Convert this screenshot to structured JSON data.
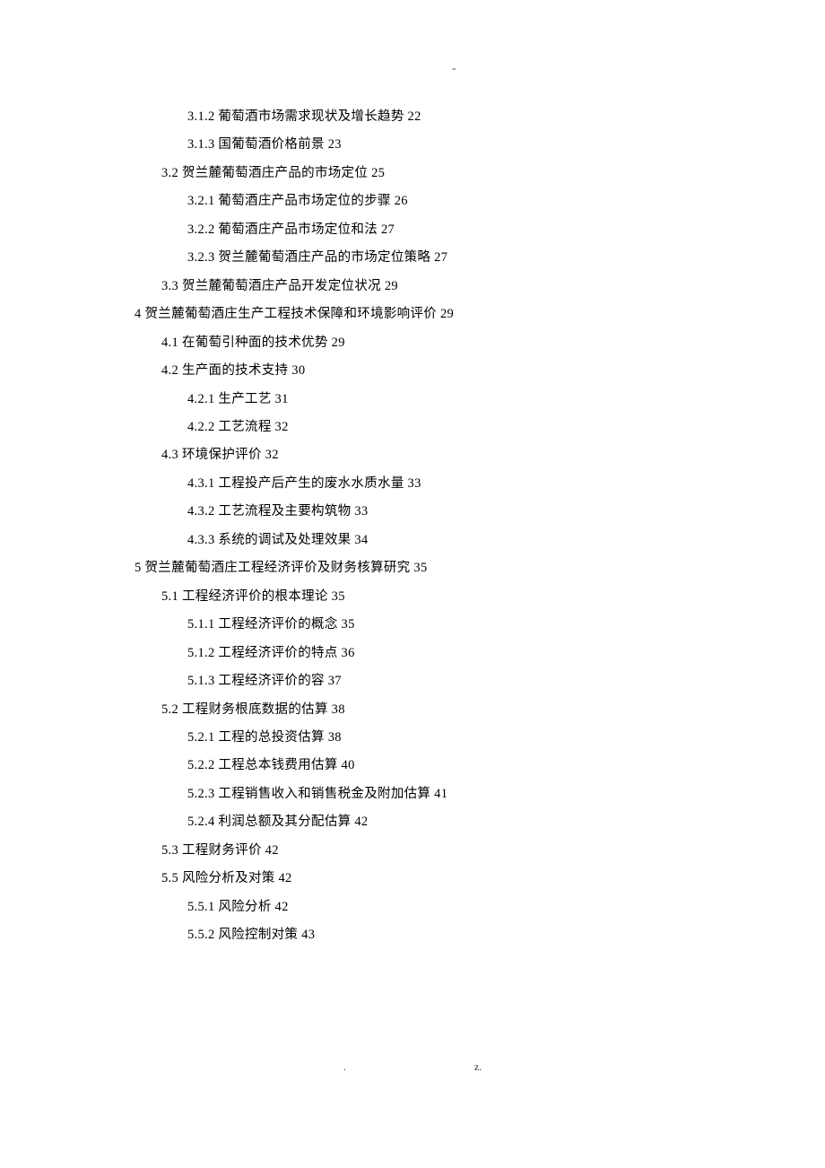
{
  "topMark": "-",
  "footerDot": ".",
  "footerZ": "z.",
  "tocEntries": [
    {
      "indent": 2,
      "text": "3.1.2 葡萄酒市场需求现状及增长趋势 22"
    },
    {
      "indent": 2,
      "text": "3.1.3 国葡萄酒价格前景 23"
    },
    {
      "indent": 1,
      "text": "3.2 贺兰麓葡萄酒庄产品的市场定位 25"
    },
    {
      "indent": 2,
      "text": "3.2.1 葡萄酒庄产品市场定位的步骤 26"
    },
    {
      "indent": 2,
      "text": "3.2.2 葡萄酒庄产品市场定位和法 27"
    },
    {
      "indent": 2,
      "text": "3.2.3 贺兰麓葡萄酒庄产品的市场定位策略 27"
    },
    {
      "indent": 1,
      "text": "3.3 贺兰麓葡萄酒庄产品开发定位状况 29"
    },
    {
      "indent": 0,
      "text": "4 贺兰麓葡萄酒庄生产工程技术保障和环境影响评价 29"
    },
    {
      "indent": 1,
      "text": "4.1 在葡萄引种面的技术优势 29"
    },
    {
      "indent": 1,
      "text": "4.2 生产面的技术支持 30"
    },
    {
      "indent": 2,
      "text": "4.2.1 生产工艺 31"
    },
    {
      "indent": 2,
      "text": "4.2.2 工艺流程 32"
    },
    {
      "indent": 1,
      "text": "4.3 环境保护评价 32"
    },
    {
      "indent": 2,
      "text": "4.3.1 工程投产后产生的废水水质水量 33"
    },
    {
      "indent": 2,
      "text": "4.3.2 工艺流程及主要构筑物 33"
    },
    {
      "indent": 2,
      "text": "4.3.3 系统的调试及处理效果 34"
    },
    {
      "indent": 0,
      "text": "5 贺兰麓葡萄酒庄工程经济评价及财务核算研究 35"
    },
    {
      "indent": 1,
      "text": "5.1 工程经济评价的根本理论 35"
    },
    {
      "indent": 2,
      "text": "5.1.1 工程经济评价的概念 35"
    },
    {
      "indent": 2,
      "text": "5.1.2 工程经济评价的特点 36"
    },
    {
      "indent": 2,
      "text": "5.1.3 工程经济评价的容 37"
    },
    {
      "indent": 1,
      "text": "5.2 工程财务根底数据的估算 38"
    },
    {
      "indent": 2,
      "text": "5.2.1 工程的总投资估算 38"
    },
    {
      "indent": 2,
      "text": "5.2.2 工程总本钱费用估算 40"
    },
    {
      "indent": 2,
      "text": "5.2.3 工程销售收入和销售税金及附加估算 41"
    },
    {
      "indent": 2,
      "text": "5.2.4 利润总额及其分配估算 42"
    },
    {
      "indent": 1,
      "text": "5.3 工程财务评价 42"
    },
    {
      "indent": 1,
      "text": "5.5 风险分析及对策 42"
    },
    {
      "indent": 2,
      "text": "5.5.1 风险分析 42"
    },
    {
      "indent": 2,
      "text": "5.5.2 风险控制对策 43"
    }
  ]
}
